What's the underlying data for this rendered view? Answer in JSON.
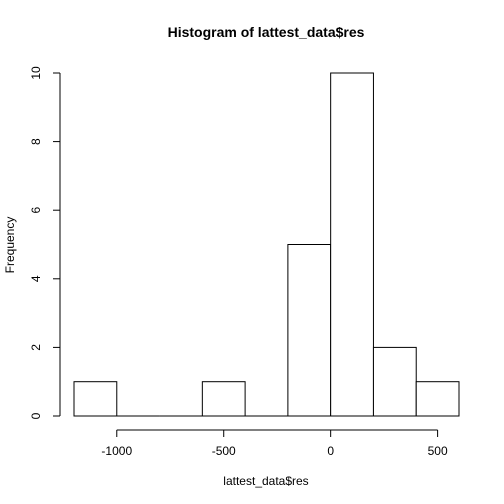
{
  "chart_data": {
    "type": "bar",
    "title": "Histogram of lattest_data$res",
    "xlabel": "lattest_data$res",
    "ylabel": "Frequency",
    "bins": [
      {
        "from": -1200,
        "to": -1000,
        "count": 1
      },
      {
        "from": -1000,
        "to": -800,
        "count": 0
      },
      {
        "from": -800,
        "to": -600,
        "count": 0
      },
      {
        "from": -600,
        "to": -400,
        "count": 1
      },
      {
        "from": -400,
        "to": -200,
        "count": 0
      },
      {
        "from": -200,
        "to": 0,
        "count": 5
      },
      {
        "from": 0,
        "to": 200,
        "count": 10
      },
      {
        "from": 200,
        "to": 400,
        "count": 2
      },
      {
        "from": 400,
        "to": 600,
        "count": 1
      }
    ],
    "xticks": [
      -1000,
      -500,
      0,
      500
    ],
    "xtick_labels": [
      "-1000",
      "-500",
      "0",
      "500"
    ],
    "yticks": [
      0,
      2,
      4,
      6,
      8,
      10
    ],
    "ytick_labels": [
      "0",
      "2",
      "4",
      "6",
      "8",
      "10"
    ],
    "xlim": [
      -1200,
      600
    ],
    "ylim": [
      0,
      10
    ],
    "grid": false,
    "legend": "none"
  }
}
